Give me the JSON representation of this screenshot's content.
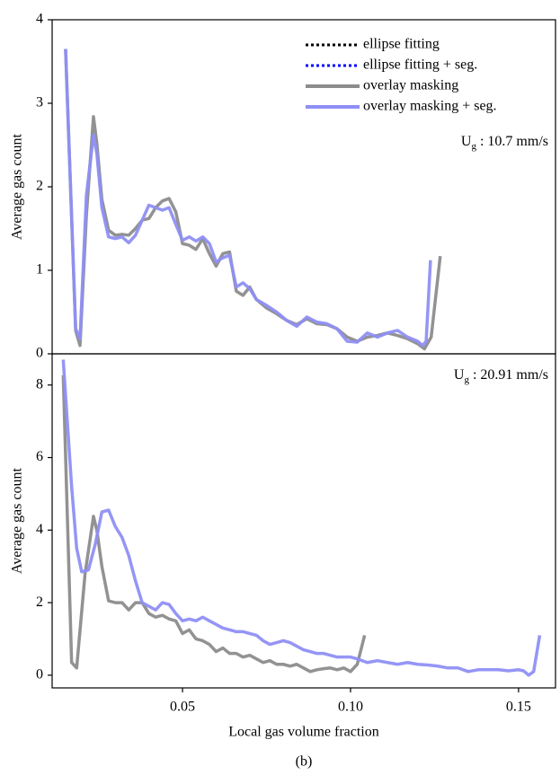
{
  "chart_data": [
    {
      "type": "line",
      "ylabel": "Average gas count",
      "ylim": [
        0,
        4
      ],
      "yticks": [
        0,
        1,
        2,
        3,
        4
      ],
      "xlim": [
        0.0112,
        0.161
      ],
      "annotation": {
        "main": "U",
        "sub": "g",
        "text": " : 10.7 mm/s"
      },
      "legend": "upper right",
      "series": [
        {
          "name": "ellipse fitting",
          "color": "#000000",
          "dash": "dotted",
          "x": [],
          "values": []
        },
        {
          "name": "ellipse fitting + seg.",
          "color": "#0000ff",
          "dash": "dotted",
          "x": [],
          "values": []
        },
        {
          "name": "overlay masking",
          "color": "#8c8c8c",
          "dash": "solid",
          "x": [
            0.0152,
            0.0182,
            0.0195,
            0.0214,
            0.0235,
            0.0245,
            0.026,
            0.028,
            0.03,
            0.032,
            0.034,
            0.036,
            0.038,
            0.04,
            0.042,
            0.044,
            0.046,
            0.048,
            0.05,
            0.052,
            0.054,
            0.056,
            0.058,
            0.06,
            0.062,
            0.064,
            0.066,
            0.068,
            0.07,
            0.072,
            0.075,
            0.078,
            0.081,
            0.084,
            0.087,
            0.09,
            0.093,
            0.096,
            0.099,
            0.102,
            0.105,
            0.108,
            0.111,
            0.114,
            0.117,
            0.12,
            0.122,
            0.124,
            0.1267
          ],
          "values": [
            3.65,
            0.28,
            0.1,
            1.66,
            2.84,
            2.52,
            1.85,
            1.48,
            1.42,
            1.43,
            1.42,
            1.5,
            1.6,
            1.62,
            1.75,
            1.83,
            1.86,
            1.7,
            1.32,
            1.3,
            1.25,
            1.38,
            1.2,
            1.05,
            1.2,
            1.22,
            0.75,
            0.7,
            0.8,
            0.65,
            0.55,
            0.48,
            0.4,
            0.35,
            0.42,
            0.36,
            0.35,
            0.3,
            0.2,
            0.15,
            0.2,
            0.22,
            0.25,
            0.22,
            0.18,
            0.12,
            0.06,
            0.2,
            1.17
          ]
        },
        {
          "name": "overlay masking + seg.",
          "color": "#8f8ff5",
          "dash": "solid",
          "x": [
            0.0152,
            0.0182,
            0.0195,
            0.0214,
            0.0235,
            0.0245,
            0.026,
            0.028,
            0.03,
            0.032,
            0.034,
            0.036,
            0.038,
            0.04,
            0.042,
            0.044,
            0.046,
            0.048,
            0.05,
            0.052,
            0.054,
            0.056,
            0.058,
            0.06,
            0.062,
            0.064,
            0.066,
            0.068,
            0.07,
            0.072,
            0.075,
            0.078,
            0.081,
            0.084,
            0.087,
            0.09,
            0.093,
            0.096,
            0.099,
            0.102,
            0.105,
            0.108,
            0.111,
            0.114,
            0.117,
            0.12,
            0.1215,
            0.1225,
            0.1238
          ],
          "values": [
            3.65,
            0.3,
            0.18,
            1.9,
            2.62,
            2.4,
            1.75,
            1.4,
            1.38,
            1.4,
            1.33,
            1.42,
            1.6,
            1.78,
            1.75,
            1.72,
            1.75,
            1.55,
            1.36,
            1.4,
            1.35,
            1.4,
            1.32,
            1.1,
            1.15,
            1.18,
            0.8,
            0.85,
            0.78,
            0.65,
            0.58,
            0.5,
            0.4,
            0.33,
            0.44,
            0.38,
            0.36,
            0.3,
            0.15,
            0.14,
            0.25,
            0.2,
            0.25,
            0.28,
            0.2,
            0.15,
            0.1,
            0.15,
            1.12
          ]
        }
      ]
    },
    {
      "type": "line",
      "ylabel": "Average gas count",
      "xlabel": "Local gas volume fraction",
      "ylim": [
        -0.35,
        8.86
      ],
      "yticks": [
        0,
        2,
        4,
        6,
        8
      ],
      "xlim": [
        0.0112,
        0.161
      ],
      "xticks": [
        0.05,
        {
          "value": 0.1,
          "label": "0.10"
        },
        0.15
      ],
      "annotation": {
        "main": "U",
        "sub": "g",
        "text": " : 20.91 mm/s"
      },
      "series": [
        {
          "name": "overlay masking",
          "color": "#8c8c8c",
          "dash": "solid",
          "x": [
            0.0145,
            0.017,
            0.0185,
            0.021,
            0.0235,
            0.0245,
            0.026,
            0.028,
            0.03,
            0.032,
            0.034,
            0.036,
            0.038,
            0.04,
            0.042,
            0.044,
            0.046,
            0.048,
            0.05,
            0.052,
            0.054,
            0.056,
            0.058,
            0.06,
            0.062,
            0.064,
            0.066,
            0.068,
            0.07,
            0.072,
            0.074,
            0.076,
            0.078,
            0.08,
            0.082,
            0.084,
            0.086,
            0.088,
            0.09,
            0.092,
            0.094,
            0.096,
            0.098,
            0.1,
            0.102,
            0.1042
          ],
          "values": [
            8.27,
            0.35,
            0.2,
            2.8,
            4.38,
            4.0,
            3.0,
            2.05,
            2.0,
            2.0,
            1.8,
            2.0,
            2.0,
            1.7,
            1.6,
            1.65,
            1.55,
            1.5,
            1.15,
            1.25,
            1.0,
            0.95,
            0.85,
            0.65,
            0.75,
            0.6,
            0.6,
            0.5,
            0.55,
            0.45,
            0.35,
            0.4,
            0.3,
            0.3,
            0.25,
            0.3,
            0.2,
            0.1,
            0.15,
            0.18,
            0.2,
            0.15,
            0.2,
            0.1,
            0.3,
            1.1
          ]
        },
        {
          "name": "overlay masking + seg.",
          "color": "#8f8ff5",
          "dash": "solid",
          "x": [
            0.0145,
            0.017,
            0.0185,
            0.02,
            0.022,
            0.024,
            0.026,
            0.028,
            0.03,
            0.032,
            0.034,
            0.036,
            0.038,
            0.04,
            0.042,
            0.044,
            0.046,
            0.048,
            0.05,
            0.052,
            0.054,
            0.056,
            0.058,
            0.06,
            0.062,
            0.064,
            0.066,
            0.068,
            0.07,
            0.072,
            0.074,
            0.076,
            0.078,
            0.08,
            0.082,
            0.084,
            0.086,
            0.088,
            0.09,
            0.092,
            0.094,
            0.096,
            0.098,
            0.1,
            0.102,
            0.105,
            0.108,
            0.111,
            0.114,
            0.117,
            0.12,
            0.123,
            0.126,
            0.129,
            0.132,
            0.135,
            0.138,
            0.141,
            0.144,
            0.147,
            0.15,
            0.1515,
            0.153,
            0.1545,
            0.1563
          ],
          "values": [
            8.7,
            5.2,
            3.5,
            2.85,
            2.9,
            3.6,
            4.5,
            4.55,
            4.1,
            3.8,
            3.3,
            2.6,
            2.0,
            1.9,
            1.8,
            2.0,
            1.95,
            1.7,
            1.5,
            1.55,
            1.5,
            1.6,
            1.5,
            1.4,
            1.3,
            1.25,
            1.2,
            1.2,
            1.15,
            1.1,
            0.95,
            0.85,
            0.9,
            0.95,
            0.9,
            0.8,
            0.7,
            0.65,
            0.6,
            0.6,
            0.55,
            0.5,
            0.5,
            0.5,
            0.45,
            0.35,
            0.4,
            0.35,
            0.3,
            0.35,
            0.3,
            0.28,
            0.25,
            0.2,
            0.2,
            0.1,
            0.15,
            0.15,
            0.15,
            0.12,
            0.15,
            0.12,
            0.0,
            0.1,
            1.1
          ]
        }
      ]
    }
  ],
  "caption": "(b)"
}
